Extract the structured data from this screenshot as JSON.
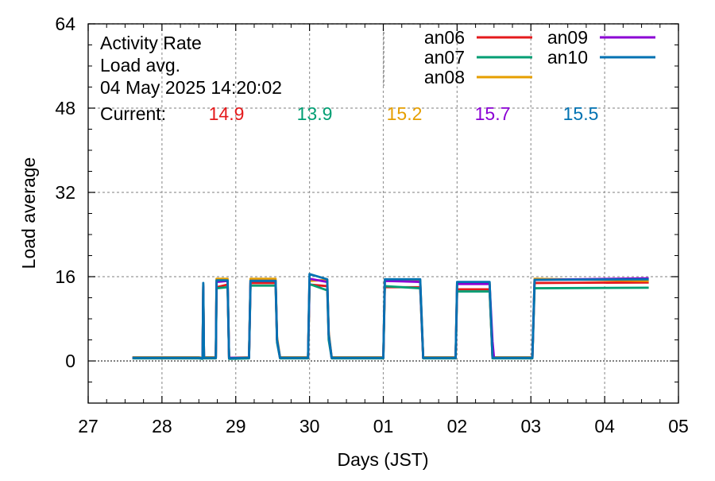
{
  "chart_data": {
    "type": "line",
    "info": {
      "line1": "Activity Rate",
      "line2": "Load avg.",
      "line3": "04 May 2025 14:20:02"
    },
    "current_label": "Current:",
    "xlabel": "Days (JST)",
    "ylabel": "Load average",
    "x_ticks": [
      "27",
      "28",
      "29",
      "30",
      "01",
      "02",
      "03",
      "04",
      "05"
    ],
    "x_tick_dates": [
      "2025-04-27",
      "2025-04-28",
      "2025-04-29",
      "2025-04-30",
      "2025-05-01",
      "2025-05-02",
      "2025-05-03",
      "2025-05-04",
      "2025-05-05"
    ],
    "y_ticks": [
      0,
      16,
      32,
      48,
      64
    ],
    "xlim": [
      "2025-04-27",
      "2025-05-05"
    ],
    "ylim": [
      -8,
      64
    ],
    "grid": true,
    "legend_position": "top-right",
    "series": [
      {
        "name": "an06",
        "color": "#e41a1c",
        "current": "14.9",
        "points": [
          [
            "2025-04-27 14:24",
            0.6
          ],
          [
            "2025-04-28 12:00",
            0.6
          ],
          [
            "2025-04-28 13:12",
            0.5
          ],
          [
            "2025-04-28 13:26",
            14
          ],
          [
            "2025-04-28 13:40",
            0.6
          ],
          [
            "2025-04-28 17:31",
            0.6
          ],
          [
            "2025-04-28 17:45",
            14
          ],
          [
            "2025-04-28 21:21",
            14.5
          ],
          [
            "2025-04-28 21:50",
            0.5
          ],
          [
            "2025-04-29 04:19",
            0.6
          ],
          [
            "2025-04-29 04:48",
            14.8
          ],
          [
            "2025-04-29 12:58",
            14.8
          ],
          [
            "2025-04-29 13:26",
            4
          ],
          [
            "2025-04-29 14:24",
            0.6
          ],
          [
            "2025-04-29 23:31",
            0.6
          ],
          [
            "2025-04-30 00:00",
            14.5
          ],
          [
            "2025-04-30 05:46",
            14.2
          ],
          [
            "2025-04-30 06:14",
            5
          ],
          [
            "2025-04-30 07:12",
            0.6
          ],
          [
            "2025-05-01 00:00",
            0.6
          ],
          [
            "2025-05-01 00:29",
            14
          ],
          [
            "2025-05-01 12:00",
            14
          ],
          [
            "2025-05-01 12:58",
            0.6
          ],
          [
            "2025-05-01 23:31",
            0.6
          ],
          [
            "2025-05-02 00:00",
            13.6
          ],
          [
            "2025-05-02 10:34",
            13.6
          ],
          [
            "2025-05-02 11:31",
            0.6
          ],
          [
            "2025-05-03 00:29",
            0.6
          ],
          [
            "2025-05-03 01:12",
            14.8
          ],
          [
            "2025-05-04 14:20",
            14.9
          ]
        ]
      },
      {
        "name": "an07",
        "color": "#009e73",
        "current": "13.9",
        "points": [
          [
            "2025-04-27 14:24",
            0.5
          ],
          [
            "2025-04-28 12:00",
            0.5
          ],
          [
            "2025-04-28 13:12",
            0.4
          ],
          [
            "2025-04-28 13:26",
            13.6
          ],
          [
            "2025-04-28 13:40",
            0.5
          ],
          [
            "2025-04-28 17:31",
            0.5
          ],
          [
            "2025-04-28 17:45",
            13.8
          ],
          [
            "2025-04-28 21:21",
            14
          ],
          [
            "2025-04-28 21:50",
            0.4
          ],
          [
            "2025-04-29 04:19",
            0.5
          ],
          [
            "2025-04-29 04:48",
            14.3
          ],
          [
            "2025-04-29 12:58",
            14.3
          ],
          [
            "2025-04-29 13:26",
            3.5
          ],
          [
            "2025-04-29 14:24",
            0.5
          ],
          [
            "2025-04-29 23:31",
            0.5
          ],
          [
            "2025-04-30 00:00",
            14.6
          ],
          [
            "2025-04-30 05:46",
            13.4
          ],
          [
            "2025-04-30 06:14",
            4
          ],
          [
            "2025-04-30 07:12",
            0.5
          ],
          [
            "2025-05-01 00:00",
            0.5
          ],
          [
            "2025-05-01 00:29",
            14.2
          ],
          [
            "2025-05-01 12:00",
            13.8
          ],
          [
            "2025-05-01 12:58",
            0.5
          ],
          [
            "2025-05-01 23:31",
            0.5
          ],
          [
            "2025-05-02 00:00",
            13.2
          ],
          [
            "2025-05-02 10:34",
            13.2
          ],
          [
            "2025-05-02 11:31",
            0.5
          ],
          [
            "2025-05-03 00:29",
            0.5
          ],
          [
            "2025-05-03 01:12",
            13.8
          ],
          [
            "2025-05-04 14:20",
            13.9
          ]
        ]
      },
      {
        "name": "an08",
        "color": "#e69f00",
        "current": "15.2",
        "points": [
          [
            "2025-04-27 14:24",
            0.7
          ],
          [
            "2025-04-28 12:00",
            0.7
          ],
          [
            "2025-04-28 13:12",
            0.6
          ],
          [
            "2025-04-28 13:26",
            14.5
          ],
          [
            "2025-04-28 13:40",
            0.7
          ],
          [
            "2025-04-28 17:31",
            0.7
          ],
          [
            "2025-04-28 17:45",
            15.6
          ],
          [
            "2025-04-28 21:21",
            15.6
          ],
          [
            "2025-04-28 21:50",
            0.6
          ],
          [
            "2025-04-29 04:19",
            0.7
          ],
          [
            "2025-04-29 04:48",
            15.6
          ],
          [
            "2025-04-29 12:58",
            15.6
          ],
          [
            "2025-04-29 13:26",
            4.5
          ],
          [
            "2025-04-29 14:24",
            0.7
          ],
          [
            "2025-04-29 23:31",
            0.7
          ],
          [
            "2025-04-30 00:00",
            15.2
          ],
          [
            "2025-04-30 05:46",
            15.4
          ],
          [
            "2025-04-30 06:14",
            5.5
          ],
          [
            "2025-04-30 07:12",
            0.7
          ],
          [
            "2025-05-01 00:00",
            0.7
          ],
          [
            "2025-05-01 00:29",
            15.3
          ],
          [
            "2025-05-01 12:00",
            15.3
          ],
          [
            "2025-05-01 12:58",
            0.7
          ],
          [
            "2025-05-01 23:31",
            0.7
          ],
          [
            "2025-05-02 00:00",
            14.8
          ],
          [
            "2025-05-02 10:34",
            14.8
          ],
          [
            "2025-05-02 11:31",
            0.7
          ],
          [
            "2025-05-03 00:29",
            0.7
          ],
          [
            "2025-05-03 01:12",
            15.6
          ],
          [
            "2025-05-04 14:20",
            15.2
          ]
        ]
      },
      {
        "name": "an09",
        "color": "#8b00d4",
        "current": "15.7",
        "points": [
          [
            "2025-04-27 14:24",
            0.6
          ],
          [
            "2025-04-28 12:00",
            0.6
          ],
          [
            "2025-04-28 13:12",
            0.5
          ],
          [
            "2025-04-28 13:26",
            14.2
          ],
          [
            "2025-04-28 13:40",
            0.6
          ],
          [
            "2025-04-28 17:31",
            0.6
          ],
          [
            "2025-04-28 17:45",
            15
          ],
          [
            "2025-04-28 21:21",
            15.2
          ],
          [
            "2025-04-28 21:50",
            0.6
          ],
          [
            "2025-04-29 04:19",
            0.6
          ],
          [
            "2025-04-29 04:48",
            15.2
          ],
          [
            "2025-04-29 12:58",
            15.2
          ],
          [
            "2025-04-29 13:26",
            4
          ],
          [
            "2025-04-29 14:24",
            0.6
          ],
          [
            "2025-04-29 23:31",
            0.6
          ],
          [
            "2025-04-30 00:00",
            15.6
          ],
          [
            "2025-04-30 05:46",
            15
          ],
          [
            "2025-04-30 06:14",
            5
          ],
          [
            "2025-04-30 07:12",
            0.6
          ],
          [
            "2025-05-01 00:00",
            0.6
          ],
          [
            "2025-05-01 00:29",
            15.2
          ],
          [
            "2025-05-01 12:00",
            15
          ],
          [
            "2025-05-01 12:58",
            0.6
          ],
          [
            "2025-05-01 23:31",
            0.6
          ],
          [
            "2025-05-02 00:00",
            14.6
          ],
          [
            "2025-05-02 10:34",
            14.6
          ],
          [
            "2025-05-02 11:31",
            3.7
          ],
          [
            "2025-05-02 12:00",
            0.6
          ],
          [
            "2025-05-03 00:29",
            0.6
          ],
          [
            "2025-05-03 01:12",
            15.4
          ],
          [
            "2025-05-04 14:20",
            15.7
          ]
        ]
      },
      {
        "name": "an10",
        "color": "#0072b2",
        "current": "15.5",
        "points": [
          [
            "2025-04-27 14:24",
            0.6
          ],
          [
            "2025-04-28 12:00",
            0.6
          ],
          [
            "2025-04-28 13:12",
            0.5
          ],
          [
            "2025-04-28 13:26",
            14.8
          ],
          [
            "2025-04-28 13:40",
            0.6
          ],
          [
            "2025-04-28 17:31",
            0.6
          ],
          [
            "2025-04-28 17:45",
            15.3
          ],
          [
            "2025-04-28 21:21",
            15.3
          ],
          [
            "2025-04-28 21:50",
            0.5
          ],
          [
            "2025-04-29 04:19",
            0.6
          ],
          [
            "2025-04-29 04:48",
            15.2
          ],
          [
            "2025-04-29 12:58",
            15.2
          ],
          [
            "2025-04-29 13:26",
            4
          ],
          [
            "2025-04-29 14:24",
            0.6
          ],
          [
            "2025-04-29 23:31",
            0.6
          ],
          [
            "2025-04-30 00:00",
            16.5
          ],
          [
            "2025-04-30 05:46",
            15.5
          ],
          [
            "2025-04-30 06:14",
            5
          ],
          [
            "2025-04-30 07:12",
            0.6
          ],
          [
            "2025-05-01 00:00",
            0.6
          ],
          [
            "2025-05-01 00:29",
            15.5
          ],
          [
            "2025-05-01 12:00",
            15.5
          ],
          [
            "2025-05-01 12:58",
            0.6
          ],
          [
            "2025-05-01 23:31",
            0.6
          ],
          [
            "2025-05-02 00:00",
            15
          ],
          [
            "2025-05-02 10:34",
            15
          ],
          [
            "2025-05-02 11:31",
            0.6
          ],
          [
            "2025-05-03 00:29",
            0.6
          ],
          [
            "2025-05-03 01:12",
            15.4
          ],
          [
            "2025-05-04 14:20",
            15.5
          ]
        ]
      }
    ]
  }
}
